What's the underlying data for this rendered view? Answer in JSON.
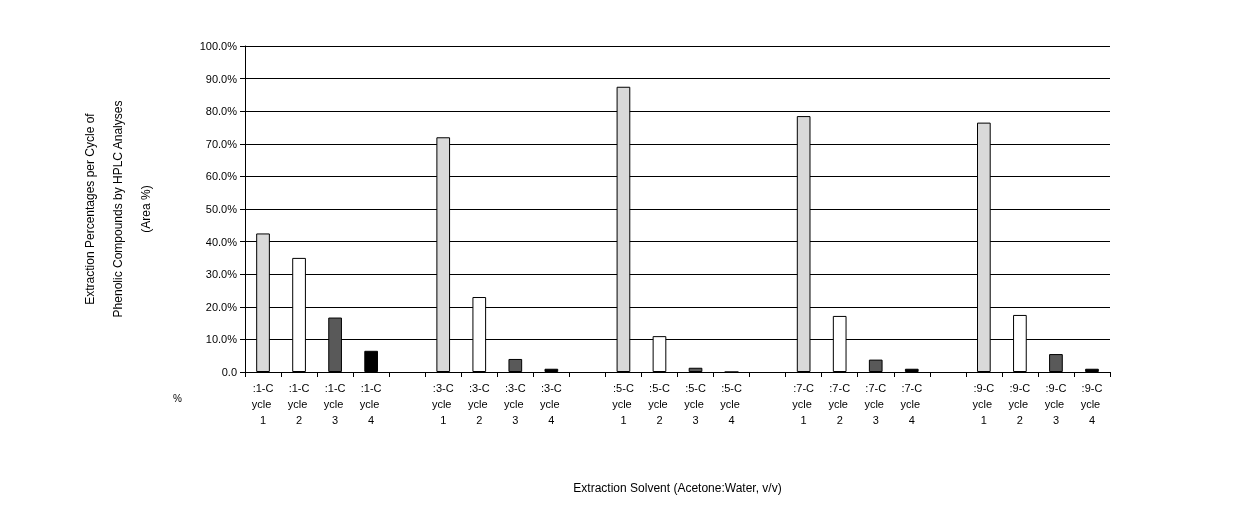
{
  "chart_data": {
    "type": "bar",
    "xlabel": "Extraction Solvent (Acetone:Water, v/v)",
    "ylabel": "Extraction Percentages per Cycle of\nPhenolic Compounds by HPLC Analyses\n(Area %)",
    "categories": [
      ":1-Cycle 1",
      ":1-Cycle 2",
      ":1-Cycle 3",
      ":1-Cycle 4",
      null,
      ":3-Cycle 1",
      ":3-Cycle 2",
      ":3-Cycle 3",
      ":3-Cycle 4",
      null,
      ":5-Cycle 1",
      ":5-Cycle 2",
      ":5-Cycle 3",
      ":5-Cycle 4",
      null,
      ":7-Cycle 1",
      ":7-Cycle 2",
      ":7-Cycle 3",
      ":7-Cycle 4",
      null,
      ":9-Cycle 1",
      ":9-Cycle 2",
      ":9-Cycle 3",
      ":9-Cycle 4"
    ],
    "values": [
      42.5,
      35,
      16.7,
      6.5,
      null,
      72,
      23,
      4,
      1,
      null,
      87.5,
      11,
      1.3,
      0,
      null,
      78.5,
      17.2,
      3.8,
      1,
      null,
      76.5,
      17.5,
      5.5,
      1
    ],
    "colors": [
      "#d9d9d9",
      "#ffffff",
      "#595959",
      "#000000",
      null,
      "#d9d9d9",
      "#ffffff",
      "#595959",
      "#000000",
      null,
      "#d9d9d9",
      "#ffffff",
      "#595959",
      "#000000",
      null,
      "#d9d9d9",
      "#ffffff",
      "#595959",
      "#000000",
      null,
      "#d9d9d9",
      "#ffffff",
      "#595959",
      "#000000"
    ],
    "ylim": [
      0,
      100
    ],
    "yticks": [
      {
        "value": 0,
        "label": "0.0"
      },
      {
        "value": 10,
        "label": "10.0%"
      },
      {
        "value": 20,
        "label": "20.0%"
      },
      {
        "value": 30,
        "label": "30.0%"
      },
      {
        "value": 40,
        "label": "40.0%"
      },
      {
        "value": 50,
        "label": "50.0%"
      },
      {
        "value": 60,
        "label": "60.0%"
      },
      {
        "value": 70,
        "label": "70.0%"
      },
      {
        "value": 80,
        "label": "80.0%"
      },
      {
        "value": 90,
        "label": "90.0%"
      },
      {
        "value": 100,
        "label": "100.0%"
      }
    ],
    "grid": "y",
    "annotations": [
      "%"
    ]
  }
}
